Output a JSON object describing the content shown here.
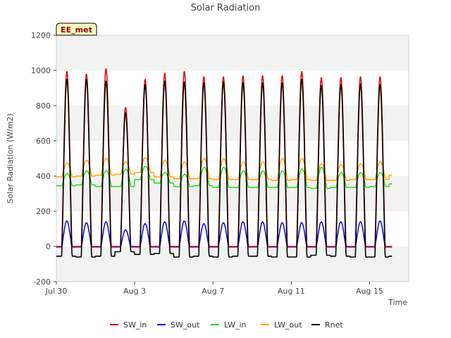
{
  "chart_data": {
    "type": "line",
    "title": "Solar Radiation",
    "xlabel": "Time",
    "ylabel": "Solar Radiation (W/m2)",
    "annotation": "EE_met",
    "xlim": [
      "2023-07-30",
      "2023-08-17"
    ],
    "ylim": [
      -200,
      1200
    ],
    "yticks": [
      -200,
      0,
      200,
      400,
      600,
      800,
      1000,
      1200
    ],
    "xticks": [
      {
        "date": "2023-07-30",
        "label": "Jul 30"
      },
      {
        "date": "2023-08-03",
        "label": "Aug 3"
      },
      {
        "date": "2023-08-07",
        "label": "Aug 7"
      },
      {
        "date": "2023-08-11",
        "label": "Aug 11"
      },
      {
        "date": "2023-08-15",
        "label": "Aug 15"
      }
    ],
    "legend_position": "bottom",
    "grid": "horizontal bands",
    "days": [
      "2023-07-30",
      "2023-07-31",
      "2023-08-01",
      "2023-08-02",
      "2023-08-03",
      "2023-08-04",
      "2023-08-05",
      "2023-08-06",
      "2023-08-07",
      "2023-08-08",
      "2023-08-09",
      "2023-08-10",
      "2023-08-11",
      "2023-08-12",
      "2023-08-13",
      "2023-08-14",
      "2023-08-15",
      "2023-08-16"
    ],
    "series": [
      {
        "name": "SW_in",
        "color": "#e00000",
        "daily_peak": [
          995,
          980,
          1010,
          790,
          950,
          985,
          995,
          965,
          965,
          970,
          970,
          970,
          995,
          960,
          960,
          965,
          965,
          960
        ]
      },
      {
        "name": "SW_out",
        "color": "#0000dd",
        "daily_peak": [
          145,
          135,
          140,
          95,
          130,
          140,
          145,
          130,
          135,
          140,
          140,
          135,
          135,
          140,
          140,
          140,
          145,
          145
        ],
        "night": -3
      },
      {
        "name": "LW_in",
        "color": "#22dd22",
        "daily_peak": [
          415,
          430,
          430,
          440,
          455,
          420,
          410,
          450,
          450,
          430,
          430,
          430,
          440,
          450,
          420,
          420,
          420,
          410
        ],
        "night": [
          345,
          350,
          340,
          340,
          380,
          360,
          340,
          345,
          335,
          335,
          335,
          335,
          335,
          330,
          335,
          335,
          340,
          355
        ]
      },
      {
        "name": "LW_out",
        "color": "#ffa500",
        "daily_peak": [
          475,
          490,
          500,
          480,
          505,
          490,
          480,
          500,
          500,
          480,
          480,
          500,
          500,
          470,
          465,
          470,
          480,
          475
        ],
        "night": [
          395,
          400,
          405,
          410,
          420,
          395,
          385,
          385,
          380,
          380,
          380,
          375,
          380,
          375,
          375,
          380,
          380,
          405
        ]
      },
      {
        "name": "Rnet",
        "color": "#000000",
        "daily_peak": [
          950,
          950,
          940,
          760,
          920,
          940,
          935,
          930,
          935,
          930,
          930,
          930,
          950,
          915,
          920,
          925,
          920,
          910
        ],
        "night": [
          -55,
          -60,
          -55,
          -30,
          -45,
          -40,
          -60,
          -55,
          -60,
          -55,
          -55,
          -60,
          -60,
          -50,
          -55,
          -60,
          -60,
          -55
        ]
      }
    ]
  }
}
